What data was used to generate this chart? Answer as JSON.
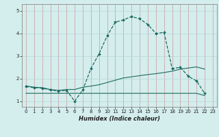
{
  "title": "",
  "xlabel": "Humidex (Indice chaleur)",
  "bg_color": "#d4eded",
  "line_color": "#1a6b5e",
  "grid_color": "#b5d5d5",
  "grid_color2": "#cc9999",
  "xlim": [
    -0.5,
    23.5
  ],
  "ylim": [
    0.75,
    5.3
  ],
  "xticks": [
    0,
    1,
    2,
    3,
    4,
    5,
    6,
    7,
    8,
    9,
    10,
    11,
    12,
    13,
    14,
    15,
    16,
    17,
    18,
    19,
    20,
    21,
    22,
    23
  ],
  "yticks": [
    1,
    2,
    3,
    4,
    5
  ],
  "curve1_x": [
    0,
    1,
    2,
    3,
    4,
    5,
    6,
    7,
    8,
    9,
    10,
    11,
    12,
    13,
    14,
    15,
    16,
    17,
    18,
    19,
    20,
    21,
    22
  ],
  "curve1_y": [
    1.65,
    1.6,
    1.58,
    1.5,
    1.45,
    1.48,
    1.0,
    1.5,
    2.45,
    3.1,
    3.9,
    4.5,
    4.6,
    4.75,
    4.65,
    4.4,
    4.0,
    4.05,
    2.45,
    2.5,
    2.1,
    1.9,
    1.35
  ],
  "curve2_x": [
    0,
    1,
    2,
    3,
    4,
    5,
    6,
    7,
    8,
    9,
    10,
    11,
    12,
    13,
    14,
    15,
    16,
    17,
    18,
    19,
    20,
    21,
    22
  ],
  "curve2_y": [
    1.68,
    1.62,
    1.6,
    1.52,
    1.48,
    1.52,
    1.52,
    1.62,
    1.67,
    1.73,
    1.83,
    1.93,
    2.03,
    2.08,
    2.13,
    2.18,
    2.22,
    2.27,
    2.33,
    2.42,
    2.47,
    2.52,
    2.42
  ],
  "curve3_x": [
    0,
    1,
    2,
    3,
    4,
    5,
    6,
    7,
    8,
    9,
    10,
    11,
    12,
    13,
    14,
    15,
    16,
    17,
    18,
    19,
    20,
    21,
    22
  ],
  "curve3_y": [
    1.35,
    1.35,
    1.35,
    1.35,
    1.35,
    1.35,
    1.35,
    1.35,
    1.35,
    1.35,
    1.35,
    1.35,
    1.35,
    1.35,
    1.35,
    1.35,
    1.35,
    1.35,
    1.35,
    1.35,
    1.35,
    1.35,
    1.25
  ]
}
